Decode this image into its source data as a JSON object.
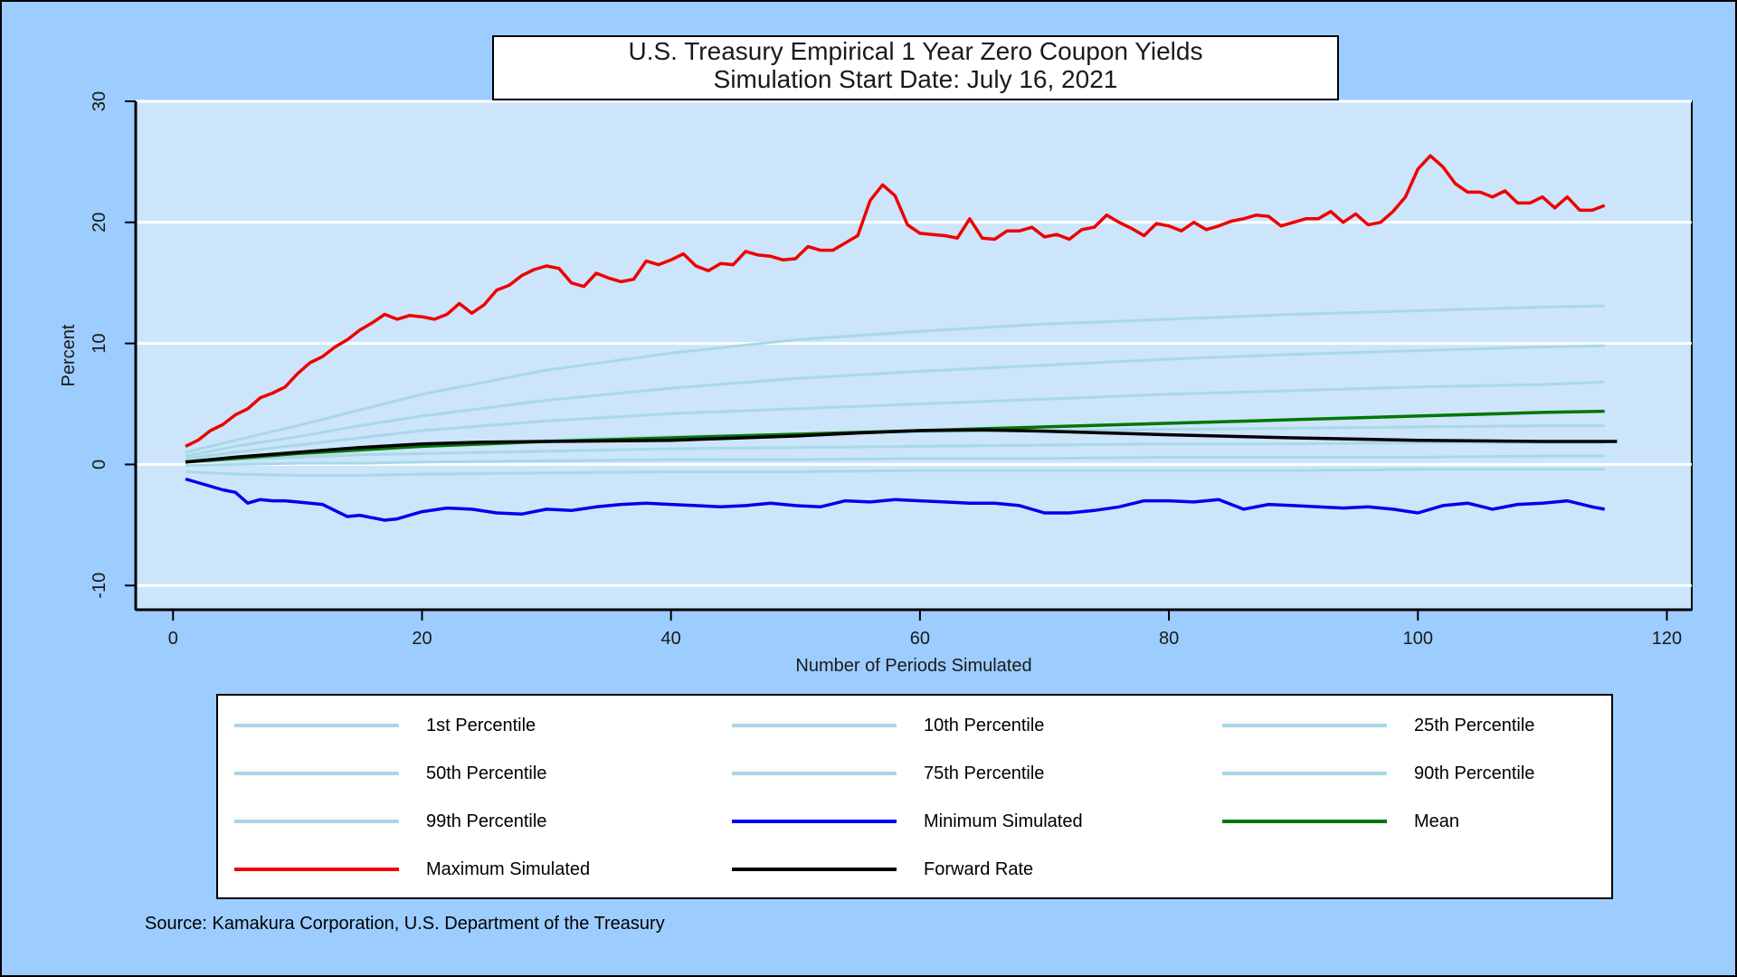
{
  "chart_data": {
    "type": "line",
    "title": "U.S. Treasury Empirical 1 Year Zero Coupon Yields",
    "subtitle": "Simulation Start Date: July 16, 2021",
    "xlabel": "Number of Periods Simulated",
    "ylabel": "Percent",
    "xlim": [
      -3,
      122
    ],
    "ylim": [
      -12,
      30
    ],
    "xticks": [
      0,
      20,
      40,
      60,
      80,
      100,
      120
    ],
    "yticks": [
      -10,
      0,
      10,
      20,
      30
    ],
    "grid": "horizontal",
    "legend_position": "bottom",
    "series": [
      {
        "name": "1st Percentile",
        "color": "#a8d8e6",
        "x": [
          1,
          5,
          10,
          15,
          20,
          30,
          40,
          50,
          60,
          70,
          80,
          90,
          100,
          110,
          115
        ],
        "y": [
          -0.6,
          -0.8,
          -0.9,
          -0.9,
          -0.8,
          -0.7,
          -0.6,
          -0.6,
          -0.5,
          -0.5,
          -0.5,
          -0.5,
          -0.4,
          -0.4,
          -0.4
        ]
      },
      {
        "name": "10th Percentile",
        "color": "#a8d8e6",
        "x": [
          1,
          5,
          10,
          15,
          20,
          30,
          40,
          50,
          60,
          70,
          80,
          90,
          100,
          110,
          115
        ],
        "y": [
          -0.1,
          0.0,
          0.1,
          0.1,
          0.2,
          0.3,
          0.4,
          0.4,
          0.5,
          0.5,
          0.6,
          0.6,
          0.6,
          0.7,
          0.7
        ]
      },
      {
        "name": "25th Percentile",
        "color": "#a8d8e6",
        "x": [
          1,
          5,
          10,
          15,
          20,
          30,
          40,
          50,
          60,
          70,
          80,
          90,
          100,
          110,
          115
        ],
        "y": [
          0.2,
          0.4,
          0.6,
          0.8,
          0.9,
          1.1,
          1.3,
          1.4,
          1.5,
          1.6,
          1.7,
          1.7,
          1.8,
          1.8,
          1.8
        ]
      },
      {
        "name": "50th Percentile",
        "color": "#a8d8e6",
        "x": [
          1,
          5,
          10,
          15,
          20,
          30,
          40,
          50,
          60,
          70,
          80,
          90,
          100,
          110,
          115
        ],
        "y": [
          0.3,
          0.6,
          0.9,
          1.2,
          1.5,
          2.0,
          2.3,
          2.5,
          2.7,
          2.8,
          2.9,
          3.0,
          3.1,
          3.2,
          3.2
        ]
      },
      {
        "name": "75th Percentile",
        "color": "#a8d8e6",
        "x": [
          1,
          5,
          10,
          15,
          20,
          30,
          40,
          50,
          60,
          70,
          80,
          90,
          100,
          110,
          115
        ],
        "y": [
          0.5,
          1.0,
          1.6,
          2.2,
          2.8,
          3.6,
          4.2,
          4.6,
          5.0,
          5.4,
          5.8,
          6.1,
          6.4,
          6.6,
          6.8
        ]
      },
      {
        "name": "90th Percentile",
        "color": "#a8d8e6",
        "x": [
          1,
          5,
          10,
          15,
          20,
          30,
          40,
          50,
          60,
          70,
          80,
          90,
          100,
          110,
          115
        ],
        "y": [
          0.7,
          1.5,
          2.3,
          3.2,
          4.0,
          5.3,
          6.3,
          7.1,
          7.7,
          8.2,
          8.7,
          9.1,
          9.4,
          9.7,
          9.8
        ]
      },
      {
        "name": "99th Percentile",
        "color": "#a8d8e6",
        "x": [
          1,
          5,
          10,
          15,
          20,
          30,
          40,
          50,
          60,
          70,
          80,
          90,
          100,
          110,
          115
        ],
        "y": [
          1.0,
          2.0,
          3.2,
          4.5,
          5.8,
          7.8,
          9.2,
          10.3,
          11.0,
          11.6,
          12.0,
          12.4,
          12.7,
          13.0,
          13.1
        ]
      },
      {
        "name": "Minimum Simulated",
        "color": "#0000ee",
        "x": [
          1,
          2,
          3,
          4,
          5,
          6,
          7,
          8,
          9,
          10,
          11,
          12,
          13,
          14,
          15,
          16,
          17,
          18,
          19,
          20,
          22,
          24,
          26,
          28,
          30,
          32,
          34,
          36,
          38,
          40,
          42,
          44,
          46,
          48,
          50,
          52,
          54,
          56,
          58,
          60,
          62,
          64,
          66,
          68,
          70,
          72,
          74,
          76,
          78,
          80,
          82,
          84,
          86,
          88,
          90,
          92,
          94,
          96,
          98,
          100,
          102,
          104,
          106,
          108,
          110,
          112,
          114,
          115
        ],
        "y": [
          -1.2,
          -1.5,
          -1.8,
          -2.1,
          -2.3,
          -3.2,
          -2.9,
          -3.0,
          -3.0,
          -3.1,
          -3.2,
          -3.3,
          -3.8,
          -4.3,
          -4.2,
          -4.4,
          -4.6,
          -4.5,
          -4.2,
          -3.9,
          -3.6,
          -3.7,
          -4.0,
          -4.1,
          -3.7,
          -3.8,
          -3.5,
          -3.3,
          -3.2,
          -3.3,
          -3.4,
          -3.5,
          -3.4,
          -3.2,
          -3.4,
          -3.5,
          -3.0,
          -3.1,
          -2.9,
          -3.0,
          -3.1,
          -3.2,
          -3.2,
          -3.4,
          -4.0,
          -4.0,
          -3.8,
          -3.5,
          -3.0,
          -3.0,
          -3.1,
          -2.9,
          -3.7,
          -3.3,
          -3.4,
          -3.5,
          -3.6,
          -3.5,
          -3.7,
          -4.0,
          -3.4,
          -3.2,
          -3.7,
          -3.3,
          -3.2,
          -3.0,
          -3.5,
          -3.7
        ]
      },
      {
        "name": "Mean",
        "color": "#007700",
        "x": [
          1,
          5,
          10,
          15,
          20,
          25,
          30,
          40,
          50,
          60,
          70,
          80,
          90,
          100,
          110,
          115
        ],
        "y": [
          0.2,
          0.5,
          0.9,
          1.2,
          1.5,
          1.7,
          1.9,
          2.2,
          2.5,
          2.8,
          3.1,
          3.4,
          3.7,
          4.0,
          4.3,
          4.4
        ]
      },
      {
        "name": "Maximum Simulated",
        "color": "#ee0000",
        "x": [
          1,
          2,
          3,
          4,
          5,
          6,
          7,
          8,
          9,
          10,
          11,
          12,
          13,
          14,
          15,
          16,
          17,
          18,
          19,
          20,
          21,
          22,
          23,
          24,
          25,
          26,
          27,
          28,
          29,
          30,
          31,
          32,
          33,
          34,
          35,
          36,
          37,
          38,
          39,
          40,
          41,
          42,
          43,
          44,
          45,
          46,
          47,
          48,
          49,
          50,
          51,
          52,
          53,
          54,
          55,
          56,
          57,
          58,
          59,
          60,
          61,
          62,
          63,
          64,
          65,
          66,
          67,
          68,
          69,
          70,
          71,
          72,
          73,
          74,
          75,
          76,
          77,
          78,
          79,
          80,
          81,
          82,
          83,
          84,
          85,
          86,
          87,
          88,
          89,
          90,
          91,
          92,
          93,
          94,
          95,
          96,
          97,
          98,
          99,
          100,
          101,
          102,
          103,
          104,
          105,
          106,
          107,
          108,
          109,
          110,
          111,
          112,
          113,
          114,
          115
        ],
        "y": [
          1.5,
          2.0,
          2.8,
          3.3,
          4.1,
          4.6,
          5.5,
          5.9,
          6.4,
          7.5,
          8.4,
          8.9,
          9.7,
          10.3,
          11.1,
          11.7,
          12.4,
          12.0,
          12.3,
          12.2,
          12.0,
          12.4,
          13.3,
          12.5,
          13.2,
          14.4,
          14.8,
          15.6,
          16.1,
          16.4,
          16.2,
          15.0,
          14.7,
          15.8,
          15.4,
          15.1,
          15.3,
          16.8,
          16.5,
          16.9,
          17.4,
          16.4,
          16.0,
          16.6,
          16.5,
          17.6,
          17.3,
          17.2,
          16.9,
          17.0,
          18.0,
          17.7,
          17.7,
          18.3,
          18.9,
          21.8,
          23.1,
          22.2,
          19.8,
          19.1,
          19.0,
          18.9,
          18.7,
          20.3,
          18.7,
          18.6,
          19.3,
          19.3,
          19.6,
          18.8,
          19.0,
          18.6,
          19.4,
          19.6,
          20.6,
          20.0,
          19.5,
          18.9,
          19.9,
          19.7,
          19.3,
          20.0,
          19.4,
          19.7,
          20.1,
          20.3,
          20.6,
          20.5,
          19.7,
          20.0,
          20.3,
          20.3,
          20.9,
          20.0,
          20.7,
          19.8,
          20.0,
          20.9,
          22.1,
          24.4,
          25.5,
          24.6,
          23.2,
          22.5,
          22.5,
          22.1,
          22.6,
          21.6,
          21.6,
          22.1,
          21.2,
          22.1,
          21.0,
          21.0,
          21.4
        ]
      },
      {
        "name": "Forward Rate",
        "color": "#000000",
        "x": [
          1,
          5,
          10,
          15,
          20,
          25,
          30,
          40,
          50,
          55,
          60,
          65,
          70,
          75,
          80,
          90,
          100,
          110,
          116
        ],
        "y": [
          0.2,
          0.6,
          1.0,
          1.4,
          1.7,
          1.85,
          1.9,
          2.0,
          2.35,
          2.6,
          2.8,
          2.85,
          2.75,
          2.6,
          2.45,
          2.2,
          2.0,
          1.9,
          1.9
        ]
      }
    ]
  },
  "legend": [
    {
      "label": "1st Percentile",
      "color": "#a8d8e6"
    },
    {
      "label": "10th Percentile",
      "color": "#a8d8e6"
    },
    {
      "label": "25th Percentile",
      "color": "#a8d8e6"
    },
    {
      "label": "50th Percentile",
      "color": "#a8d8e6"
    },
    {
      "label": "75th Percentile",
      "color": "#a8d8e6"
    },
    {
      "label": "90th Percentile",
      "color": "#a8d8e6"
    },
    {
      "label": "99th Percentile",
      "color": "#a8d8e6"
    },
    {
      "label": "Minimum Simulated",
      "color": "#0000ee"
    },
    {
      "label": "Mean",
      "color": "#007700"
    },
    {
      "label": "Maximum Simulated",
      "color": "#ee0000"
    },
    {
      "label": "Forward Rate",
      "color": "#000000"
    }
  ],
  "source": "Source: Kamakura Corporation, U.S. Department of the Treasury"
}
